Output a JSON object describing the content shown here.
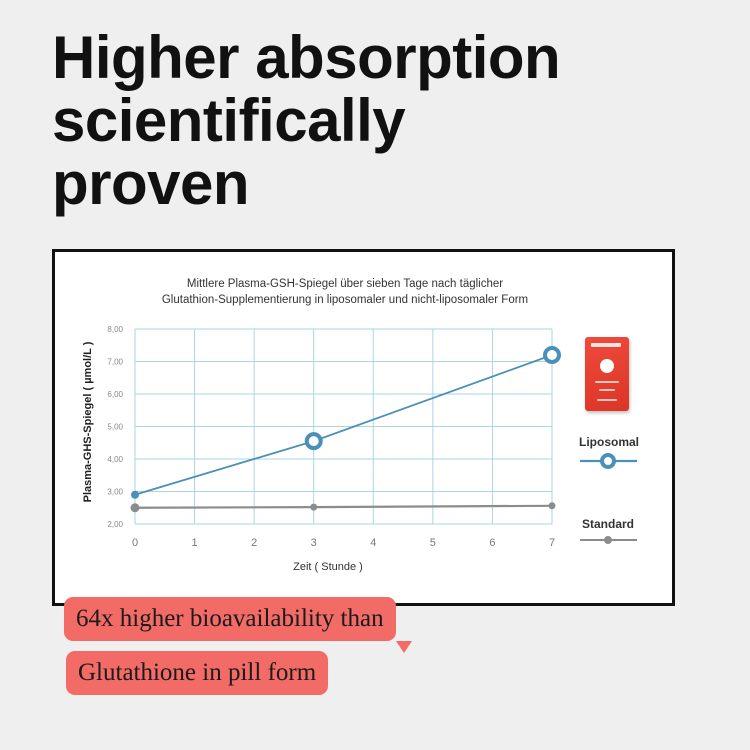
{
  "headline": {
    "line1": "Higher absorption",
    "line2": "scientifically",
    "line3": "proven"
  },
  "chart_data": {
    "type": "line",
    "title_line1": "Mittlere Plasma-GSH-Spiegel über sieben Tage nach täglicher",
    "title_line2": "Glutathion-Supplementierung in liposomaler und nicht-liposomaler Form",
    "xlabel": "Zeit ( Stunde )",
    "ylabel": "Plasma-GHS-Spiegel ( µmol/L )",
    "xlim": [
      0,
      7
    ],
    "ylim": [
      2,
      8
    ],
    "x_ticks": [
      "0",
      "1",
      "2",
      "3",
      "4",
      "5",
      "6",
      "7"
    ],
    "y_ticks": [
      "2,00",
      "3,00",
      "4,00",
      "5,00",
      "6,00",
      "7,00",
      "8,00"
    ],
    "grid": true,
    "legend_position": "right",
    "series": [
      {
        "name": "Liposomal",
        "color": "#4a90b8",
        "marker": "ring",
        "x": [
          0,
          3,
          7
        ],
        "y": [
          2.9,
          4.55,
          7.2
        ]
      },
      {
        "name": "Standard",
        "color": "#8c8c8c",
        "marker": "dot",
        "x": [
          0,
          3,
          7
        ],
        "y": [
          2.5,
          2.52,
          2.56
        ]
      }
    ],
    "grid_color": "#a9d6e4"
  },
  "callouts": {
    "line1": "64x higher bioavailability than",
    "line2": "Glutathione in pill form"
  }
}
